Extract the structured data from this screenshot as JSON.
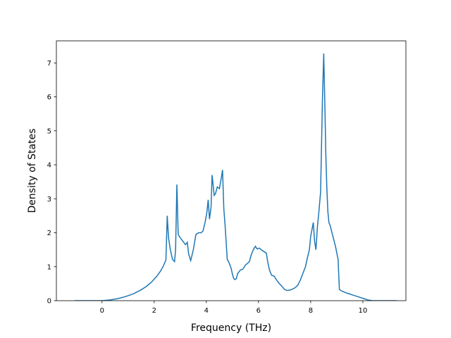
{
  "chart_data": {
    "type": "line",
    "title": "",
    "xlabel": "Frequency (THz)",
    "ylabel": "Density of States",
    "xlim": [
      -1.75,
      11.65
    ],
    "ylim": [
      0,
      7.65
    ],
    "xticks": [
      0,
      2,
      4,
      6,
      8,
      10
    ],
    "yticks": [
      0,
      1,
      2,
      3,
      4,
      5,
      6,
      7
    ],
    "grid": false,
    "line_color": "#1f77b4",
    "series": [
      {
        "x": [
          -1.05,
          -0.5,
          0.0,
          0.3,
          0.6,
          0.9,
          1.2,
          1.5,
          1.7,
          1.9,
          2.1,
          2.25,
          2.35,
          2.45,
          2.5,
          2.55,
          2.62,
          2.7,
          2.78,
          2.82,
          2.87,
          2.92,
          3.0,
          3.1,
          3.2,
          3.27,
          3.32,
          3.4,
          3.5,
          3.6,
          3.7,
          3.8,
          3.87,
          3.95,
          4.02,
          4.07,
          4.12,
          4.18,
          4.22,
          4.3,
          4.35,
          4.42,
          4.5,
          4.57,
          4.62,
          4.67,
          4.72,
          4.8,
          4.88,
          4.95,
          5.0,
          5.05,
          5.1,
          5.15,
          5.2,
          5.3,
          5.4,
          5.5,
          5.58,
          5.65,
          5.72,
          5.8,
          5.88,
          5.95,
          6.03,
          6.1,
          6.2,
          6.3,
          6.35,
          6.42,
          6.5,
          6.6,
          6.7,
          6.8,
          6.9,
          7.0,
          7.1,
          7.2,
          7.3,
          7.4,
          7.5,
          7.6,
          7.7,
          7.8,
          7.87,
          7.95,
          8.0,
          8.05,
          8.1,
          8.15,
          8.2,
          8.26,
          8.3,
          8.38,
          8.45,
          8.5,
          8.55,
          8.58,
          8.62,
          8.66,
          8.7,
          8.75,
          8.85,
          8.95,
          9.05,
          9.1,
          9.2,
          9.4,
          9.6,
          9.8,
          10.0,
          10.2,
          10.35,
          10.6,
          11.3
        ],
        "y": [
          0.0,
          0.0,
          0.0,
          0.02,
          0.06,
          0.12,
          0.2,
          0.32,
          0.42,
          0.55,
          0.72,
          0.88,
          1.02,
          1.2,
          2.5,
          1.85,
          1.5,
          1.22,
          1.15,
          1.5,
          3.42,
          1.95,
          1.85,
          1.75,
          1.65,
          1.72,
          1.38,
          1.18,
          1.5,
          1.95,
          2.0,
          2.0,
          2.05,
          2.3,
          2.6,
          2.97,
          2.4,
          2.75,
          3.7,
          3.1,
          3.15,
          3.35,
          3.3,
          3.6,
          3.85,
          2.7,
          2.2,
          1.22,
          1.1,
          0.95,
          0.78,
          0.65,
          0.62,
          0.65,
          0.8,
          0.9,
          0.93,
          1.05,
          1.1,
          1.15,
          1.35,
          1.5,
          1.6,
          1.52,
          1.55,
          1.5,
          1.45,
          1.4,
          1.15,
          0.9,
          0.75,
          0.72,
          0.6,
          0.5,
          0.42,
          0.33,
          0.3,
          0.31,
          0.34,
          0.38,
          0.45,
          0.6,
          0.8,
          1.0,
          1.25,
          1.5,
          1.9,
          2.1,
          2.3,
          1.75,
          1.5,
          2.2,
          2.5,
          3.2,
          5.9,
          7.28,
          5.5,
          4.3,
          3.3,
          2.6,
          2.3,
          2.2,
          1.9,
          1.6,
          1.22,
          0.33,
          0.28,
          0.22,
          0.17,
          0.12,
          0.07,
          0.02,
          0.0,
          0.0,
          0.0
        ]
      }
    ]
  }
}
